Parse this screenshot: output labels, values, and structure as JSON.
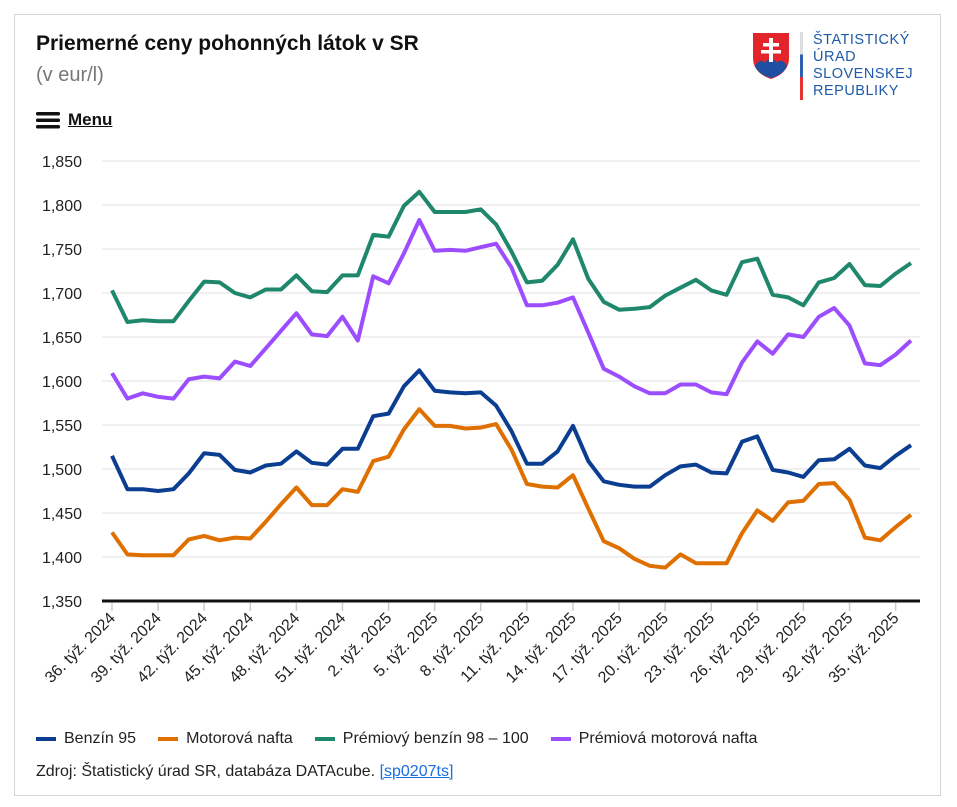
{
  "header": {
    "title": "Priemerné ceny pohonných látok v SR",
    "subtitle": "(v eur/l)",
    "menu_label": "Menu"
  },
  "logo": {
    "lines": [
      "ŠTATISTICKÝ",
      "ÚRAD",
      "SLOVENSKEJ",
      "REPUBLIKY"
    ]
  },
  "source": {
    "text": "Zdroj: Štatistický úrad SR, databáza DATAcube.",
    "link": "[sp0207ts]"
  },
  "chart_data": {
    "type": "line",
    "title": "Priemerné ceny pohonných látok v SR",
    "ylim": [
      1350,
      1850
    ],
    "yticks": [
      "1,350",
      "1,400",
      "1,450",
      "1,500",
      "1,550",
      "1,600",
      "1,650",
      "1,700",
      "1,750",
      "1,800",
      "1,850"
    ],
    "grid": true,
    "legend": "bottom",
    "x": [
      "36. týž. 2024",
      "37. týž. 2024",
      "38. týž. 2024",
      "39. týž. 2024",
      "40. týž. 2024",
      "41. týž. 2024",
      "42. týž. 2024",
      "43. týž. 2024",
      "44. týž. 2024",
      "45. týž. 2024",
      "46. týž. 2024",
      "47. týž. 2024",
      "48. týž. 2024",
      "49. týž. 2024",
      "50. týž. 2024",
      "51. týž. 2024",
      "52. týž. 2024",
      "1. týž. 2025",
      "2. týž. 2025",
      "3. týž. 2025",
      "4. týž. 2025",
      "5. týž. 2025",
      "6. týž. 2025",
      "7. týž. 2025",
      "8. týž. 2025",
      "9. týž. 2025",
      "10. týž. 2025",
      "11. týž. 2025",
      "12. týž. 2025",
      "13. týž. 2025",
      "14. týž. 2025",
      "15. týž. 2025",
      "16. týž. 2025",
      "17. týž. 2025",
      "18. týž. 2025",
      "19. týž. 2025",
      "20. týž. 2025",
      "21. týž. 2025",
      "22. týž. 2025",
      "23. týž. 2025",
      "24. týž. 2025",
      "25. týž. 2025",
      "26. týž. 2025",
      "27. týž. 2025",
      "28. týž. 2025",
      "29. týž. 2025",
      "30. týž. 2025",
      "31. týž. 2025",
      "32. týž. 2025",
      "33. týž. 2025",
      "34. týž. 2025",
      "35. týž. 2025",
      "36. týž. 2025"
    ],
    "xtick_labels": [
      "36. týž. 2024",
      "39. týž. 2024",
      "42. týž. 2024",
      "45. týž. 2024",
      "48. týž. 2024",
      "51. týž. 2024",
      "2. týž. 2025",
      "5. týž. 2025",
      "8. týž. 2025",
      "11. týž. 2025",
      "14. týž. 2025",
      "17. týž. 2025",
      "20. týž. 2025",
      "23. týž. 2025",
      "26. týž. 2025",
      "29. týž. 2025",
      "32. týž. 2025",
      "35. týž. 2025"
    ],
    "series": [
      {
        "name": "Benzín 95",
        "color": "#0b3d91",
        "values": [
          1.515,
          1.477,
          1.477,
          1.475,
          1.477,
          1.495,
          1.518,
          1.516,
          1.499,
          1.496,
          1.504,
          1.506,
          1.52,
          1.507,
          1.505,
          1.523,
          1.523,
          1.56,
          1.563,
          1.594,
          1.612,
          1.589,
          1.587,
          1.586,
          1.587,
          1.572,
          1.543,
          1.506,
          1.506,
          1.52,
          1.549,
          1.509,
          1.486,
          1.482,
          1.48,
          1.48,
          1.493,
          1.503,
          1.505,
          1.496,
          1.495,
          1.531,
          1.537,
          1.499,
          1.496,
          1.491,
          1.51,
          1.511,
          1.523,
          1.504,
          1.501,
          1.515,
          1.527
        ]
      },
      {
        "name": "Motorová nafta",
        "color": "#df7000",
        "values": [
          1.428,
          1.403,
          1.402,
          1.402,
          1.402,
          1.42,
          1.424,
          1.419,
          1.422,
          1.421,
          1.44,
          1.46,
          1.479,
          1.459,
          1.459,
          1.477,
          1.474,
          1.509,
          1.514,
          1.545,
          1.568,
          1.549,
          1.549,
          1.546,
          1.547,
          1.551,
          1.522,
          1.483,
          1.48,
          1.479,
          1.493,
          1.455,
          1.418,
          1.41,
          1.398,
          1.39,
          1.388,
          1.403,
          1.393,
          1.393,
          1.393,
          1.427,
          1.453,
          1.441,
          1.462,
          1.464,
          1.483,
          1.484,
          1.465,
          1.422,
          1.419,
          1.434,
          1.448
        ]
      },
      {
        "name": "Prémiový benzín 98 – 100",
        "color": "#1f876c",
        "values": [
          1.703,
          1.667,
          1.669,
          1.668,
          1.668,
          1.691,
          1.713,
          1.712,
          1.7,
          1.695,
          1.704,
          1.704,
          1.72,
          1.702,
          1.701,
          1.72,
          1.72,
          1.766,
          1.764,
          1.799,
          1.815,
          1.792,
          1.792,
          1.792,
          1.795,
          1.778,
          1.747,
          1.712,
          1.714,
          1.732,
          1.761,
          1.716,
          1.69,
          1.681,
          1.682,
          1.684,
          1.697,
          1.706,
          1.715,
          1.703,
          1.698,
          1.735,
          1.739,
          1.698,
          1.695,
          1.686,
          1.712,
          1.717,
          1.733,
          1.709,
          1.708,
          1.722,
          1.734
        ]
      },
      {
        "name": "Prémiová motorová nafta",
        "color": "#9b4dff",
        "values": [
          1.609,
          1.58,
          1.586,
          1.582,
          1.58,
          1.602,
          1.605,
          1.603,
          1.622,
          1.617,
          1.637,
          1.657,
          1.677,
          1.653,
          1.651,
          1.673,
          1.646,
          1.719,
          1.711,
          1.745,
          1.783,
          1.748,
          1.749,
          1.748,
          1.752,
          1.756,
          1.729,
          1.686,
          1.686,
          1.689,
          1.695,
          1.655,
          1.614,
          1.605,
          1.594,
          1.586,
          1.586,
          1.596,
          1.596,
          1.587,
          1.585,
          1.621,
          1.645,
          1.631,
          1.653,
          1.65,
          1.673,
          1.683,
          1.663,
          1.62,
          1.618,
          1.63,
          1.646
        ]
      }
    ]
  }
}
